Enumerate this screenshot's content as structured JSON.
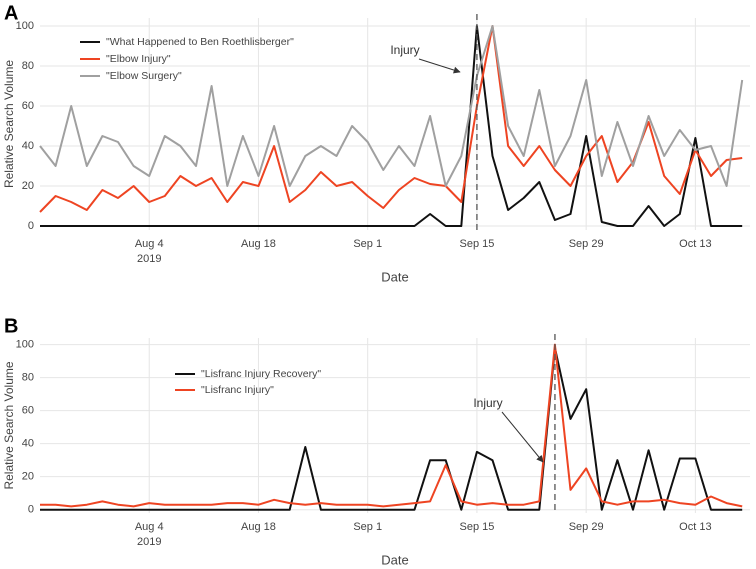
{
  "chart_data": [
    {
      "type": "line",
      "panel_label": "A",
      "x": [
        "2019-07-21",
        "2019-07-23",
        "2019-07-25",
        "2019-07-27",
        "2019-07-29",
        "2019-07-31",
        "2019-08-02",
        "2019-08-04",
        "2019-08-06",
        "2019-08-08",
        "2019-08-10",
        "2019-08-12",
        "2019-08-14",
        "2019-08-16",
        "2019-08-18",
        "2019-08-20",
        "2019-08-22",
        "2019-08-24",
        "2019-08-26",
        "2019-08-28",
        "2019-08-30",
        "2019-09-01",
        "2019-09-03",
        "2019-09-05",
        "2019-09-07",
        "2019-09-09",
        "2019-09-11",
        "2019-09-13",
        "2019-09-15",
        "2019-09-17",
        "2019-09-19",
        "2019-09-21",
        "2019-09-23",
        "2019-09-25",
        "2019-09-27",
        "2019-09-29",
        "2019-10-01",
        "2019-10-03",
        "2019-10-05",
        "2019-10-07",
        "2019-10-09",
        "2019-10-11",
        "2019-10-13",
        "2019-10-15",
        "2019-10-17",
        "2019-10-19"
      ],
      "series": [
        {
          "name": "\"What Happened to Ben Roethlisberger\"",
          "color": "#111111",
          "values": [
            0,
            0,
            0,
            0,
            0,
            0,
            0,
            0,
            0,
            0,
            0,
            0,
            0,
            0,
            0,
            0,
            0,
            0,
            0,
            0,
            0,
            0,
            0,
            0,
            0,
            6,
            0,
            0,
            100,
            35,
            8,
            14,
            22,
            3,
            6,
            45,
            2,
            0,
            0,
            10,
            0,
            6,
            44,
            0,
            0,
            0
          ]
        },
        {
          "name": "\"Elbow Injury\"",
          "color": "#ee4422",
          "values": [
            7,
            15,
            12,
            8,
            18,
            14,
            20,
            12,
            15,
            25,
            20,
            24,
            12,
            22,
            20,
            40,
            12,
            18,
            27,
            20,
            22,
            15,
            9,
            18,
            24,
            21,
            20,
            12,
            60,
            100,
            40,
            30,
            40,
            28,
            20,
            35,
            45,
            22,
            32,
            52,
            25,
            16,
            38,
            25,
            33,
            34
          ]
        },
        {
          "name": "\"Elbow Surgery\"",
          "color": "#a0a0a0",
          "values": [
            40,
            30,
            60,
            30,
            45,
            42,
            30,
            25,
            45,
            40,
            30,
            70,
            20,
            45,
            25,
            50,
            20,
            35,
            40,
            35,
            50,
            42,
            28,
            40,
            30,
            55,
            20,
            35,
            75,
            100,
            50,
            35,
            68,
            30,
            45,
            73,
            25,
            52,
            30,
            55,
            35,
            48,
            38,
            40,
            20,
            73
          ]
        }
      ],
      "xlim": [
        "2019-07-21",
        "2019-10-20"
      ],
      "xticks": [
        {
          "value": "2019-08-04",
          "label": "Aug 4"
        },
        {
          "value": "2019-08-18",
          "label": "Aug 18"
        },
        {
          "value": "2019-09-01",
          "label": "Sep 1"
        },
        {
          "value": "2019-09-15",
          "label": "Sep 15"
        },
        {
          "value": "2019-09-29",
          "label": "Sep 29"
        },
        {
          "value": "2019-10-13",
          "label": "Oct 13"
        }
      ],
      "x_year_label": "2019",
      "ylim": [
        -2,
        104
      ],
      "yticks": [
        0,
        20,
        40,
        60,
        80,
        100
      ],
      "xlabel": "Date",
      "ylabel": "Relative Search Volume",
      "vline": "2019-09-15",
      "annotation": "Injury",
      "grid": true,
      "legend": "upper left"
    },
    {
      "type": "line",
      "panel_label": "B",
      "x": [
        "2019-07-21",
        "2019-07-23",
        "2019-07-25",
        "2019-07-27",
        "2019-07-29",
        "2019-07-31",
        "2019-08-02",
        "2019-08-04",
        "2019-08-06",
        "2019-08-08",
        "2019-08-10",
        "2019-08-12",
        "2019-08-14",
        "2019-08-16",
        "2019-08-18",
        "2019-08-20",
        "2019-08-22",
        "2019-08-24",
        "2019-08-26",
        "2019-08-28",
        "2019-08-30",
        "2019-09-01",
        "2019-09-03",
        "2019-09-05",
        "2019-09-07",
        "2019-09-09",
        "2019-09-11",
        "2019-09-13",
        "2019-09-15",
        "2019-09-17",
        "2019-09-19",
        "2019-09-21",
        "2019-09-23",
        "2019-09-25",
        "2019-09-27",
        "2019-09-29",
        "2019-10-01",
        "2019-10-03",
        "2019-10-05",
        "2019-10-07",
        "2019-10-09",
        "2019-10-11",
        "2019-10-13",
        "2019-10-15",
        "2019-10-17",
        "2019-10-19"
      ],
      "series": [
        {
          "name": "\"Lisfranc Injury Recovery\"",
          "color": "#111111",
          "values": [
            0,
            0,
            0,
            0,
            0,
            0,
            0,
            0,
            0,
            0,
            0,
            0,
            0,
            0,
            0,
            0,
            0,
            38,
            0,
            0,
            0,
            0,
            0,
            0,
            0,
            30,
            30,
            0,
            35,
            30,
            0,
            0,
            0,
            98,
            55,
            73,
            0,
            30,
            0,
            36,
            0,
            31,
            31,
            0,
            0,
            0
          ]
        },
        {
          "name": "\"Lisfranc Injury\"",
          "color": "#ee4422",
          "values": [
            3,
            3,
            2,
            3,
            5,
            3,
            2,
            4,
            3,
            3,
            3,
            3,
            4,
            4,
            3,
            6,
            4,
            3,
            4,
            3,
            3,
            3,
            2,
            3,
            4,
            5,
            27,
            5,
            3,
            4,
            3,
            3,
            5,
            100,
            12,
            25,
            5,
            3,
            5,
            5,
            6,
            4,
            3,
            8,
            4,
            2
          ]
        }
      ],
      "xlim": [
        "2019-07-21",
        "2019-10-20"
      ],
      "xticks": [
        {
          "value": "2019-08-04",
          "label": "Aug 4"
        },
        {
          "value": "2019-08-18",
          "label": "Aug 18"
        },
        {
          "value": "2019-09-01",
          "label": "Sep 1"
        },
        {
          "value": "2019-09-15",
          "label": "Sep 15"
        },
        {
          "value": "2019-09-29",
          "label": "Sep 29"
        },
        {
          "value": "2019-10-13",
          "label": "Oct 13"
        }
      ],
      "x_year_label": "2019",
      "ylim": [
        -2,
        104
      ],
      "yticks": [
        0,
        20,
        40,
        60,
        80,
        100
      ],
      "xlabel": "Date",
      "ylabel": "Relative Search Volume",
      "vline": "2019-09-25",
      "annotation": "Injury",
      "grid": true,
      "legend": "upper left"
    }
  ]
}
